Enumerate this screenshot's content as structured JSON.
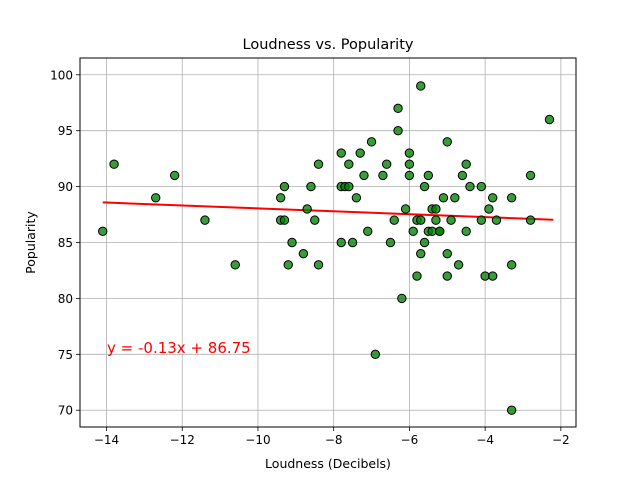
{
  "chart_data": {
    "type": "scatter",
    "title": "Loudness vs. Popularity",
    "xlabel": "Loudness (Decibels)",
    "ylabel": "Popularity",
    "xlim": [
      -14.7,
      -1.6
    ],
    "ylim": [
      68.5,
      101.5
    ],
    "grid": true,
    "xticks": [
      -14,
      -12,
      -10,
      -8,
      -6,
      -4,
      -2
    ],
    "yticks": [
      70,
      75,
      80,
      85,
      90,
      95,
      100
    ],
    "point_color": "#008000",
    "point_edge_color": "#000000",
    "line_color": "#ff0000",
    "regression": {
      "slope": -0.13,
      "intercept": 86.75,
      "x_range": [
        -14.1,
        -2.2
      ]
    },
    "annotation": {
      "text": "y = -0.13x + 86.75",
      "x": -14.0,
      "y": 75
    },
    "points": [
      [
        -14.1,
        86
      ],
      [
        -13.8,
        92
      ],
      [
        -12.7,
        89
      ],
      [
        -12.2,
        91
      ],
      [
        -11.4,
        87
      ],
      [
        -10.6,
        83
      ],
      [
        -9.4,
        89
      ],
      [
        -9.4,
        87
      ],
      [
        -9.3,
        87
      ],
      [
        -9.3,
        90
      ],
      [
        -9.2,
        83
      ],
      [
        -9.1,
        85
      ],
      [
        -8.8,
        84
      ],
      [
        -8.7,
        88
      ],
      [
        -8.6,
        90
      ],
      [
        -8.5,
        87
      ],
      [
        -8.4,
        92
      ],
      [
        -8.4,
        83
      ],
      [
        -7.8,
        93
      ],
      [
        -7.8,
        90
      ],
      [
        -7.8,
        85
      ],
      [
        -7.7,
        90
      ],
      [
        -7.6,
        90
      ],
      [
        -7.6,
        92
      ],
      [
        -7.5,
        85
      ],
      [
        -7.4,
        89
      ],
      [
        -7.3,
        93
      ],
      [
        -7.2,
        91
      ],
      [
        -7.1,
        86
      ],
      [
        -7.0,
        94
      ],
      [
        -6.9,
        75
      ],
      [
        -6.7,
        91
      ],
      [
        -6.6,
        92
      ],
      [
        -6.5,
        85
      ],
      [
        -6.4,
        87
      ],
      [
        -6.3,
        97
      ],
      [
        -6.3,
        95
      ],
      [
        -6.2,
        80
      ],
      [
        -6.1,
        88
      ],
      [
        -6.0,
        92
      ],
      [
        -6.0,
        91
      ],
      [
        -6.0,
        93
      ],
      [
        -5.9,
        86
      ],
      [
        -5.8,
        82
      ],
      [
        -5.8,
        87
      ],
      [
        -5.7,
        99
      ],
      [
        -5.7,
        84
      ],
      [
        -5.7,
        87
      ],
      [
        -5.6,
        90
      ],
      [
        -5.6,
        85
      ],
      [
        -5.5,
        86
      ],
      [
        -5.5,
        91
      ],
      [
        -5.4,
        88
      ],
      [
        -5.4,
        86
      ],
      [
        -5.3,
        87
      ],
      [
        -5.3,
        88
      ],
      [
        -5.2,
        86
      ],
      [
        -5.2,
        86
      ],
      [
        -5.1,
        89
      ],
      [
        -5.0,
        94
      ],
      [
        -5.0,
        84
      ],
      [
        -5.0,
        82
      ],
      [
        -4.9,
        87
      ],
      [
        -4.8,
        89
      ],
      [
        -4.7,
        83
      ],
      [
        -4.6,
        91
      ],
      [
        -4.5,
        86
      ],
      [
        -4.5,
        92
      ],
      [
        -4.4,
        90
      ],
      [
        -4.1,
        87
      ],
      [
        -4.1,
        90
      ],
      [
        -4.0,
        82
      ],
      [
        -3.9,
        88
      ],
      [
        -3.8,
        89
      ],
      [
        -3.8,
        82
      ],
      [
        -3.7,
        87
      ],
      [
        -3.3,
        89
      ],
      [
        -3.3,
        83
      ],
      [
        -3.3,
        70
      ],
      [
        -2.8,
        91
      ],
      [
        -2.8,
        87
      ],
      [
        -2.3,
        96
      ]
    ]
  }
}
